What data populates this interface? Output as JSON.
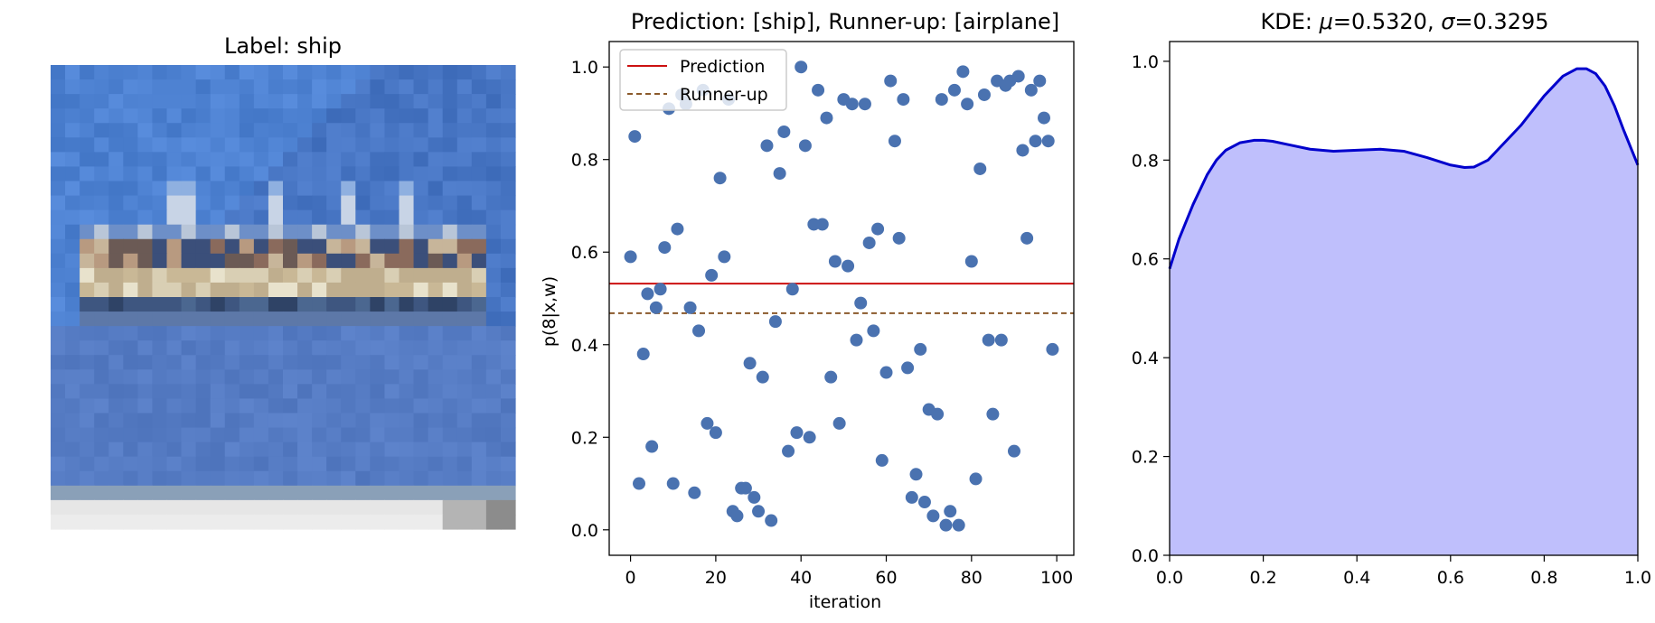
{
  "chart_data": [
    {
      "type": "image",
      "title": "Label: ship",
      "image_description_colors": {
        "sea": "#4a78c8",
        "sea_light": "#6f9de4",
        "hull": "#c9b896",
        "bottom_strip": "#8aa0b8"
      }
    },
    {
      "type": "scatter",
      "title": "Prediction: [ship], Runner-up: [airplane]",
      "title_color": "#4e7a1e",
      "xlabel": "iteration",
      "ylabel": "p(8|x,w)",
      "xlim": [
        -5,
        104
      ],
      "ylim": [
        -0.055,
        1.055
      ],
      "xticks": [
        0,
        20,
        40,
        60,
        80,
        100
      ],
      "yticks": [
        "0.0",
        "0.2",
        "0.4",
        "0.6",
        "0.8",
        "1.0"
      ],
      "point_color": "#4a72b0",
      "prediction_line": {
        "label": "Prediction",
        "value": 0.532,
        "color": "#cc1111",
        "style": "solid"
      },
      "runnerup_line": {
        "label": "Runner-up",
        "value": 0.468,
        "color": "#8b5a2b",
        "style": "dashed"
      },
      "legend": "top-left",
      "x": [
        0,
        1,
        2,
        3,
        4,
        5,
        6,
        7,
        8,
        9,
        10,
        11,
        12,
        13,
        14,
        15,
        16,
        17,
        18,
        19,
        20,
        21,
        22,
        23,
        24,
        25,
        26,
        27,
        28,
        29,
        30,
        31,
        32,
        33,
        34,
        35,
        36,
        37,
        38,
        39,
        40,
        41,
        42,
        43,
        44,
        45,
        46,
        47,
        48,
        49,
        50,
        51,
        52,
        53,
        54,
        55,
        56,
        57,
        58,
        59,
        60,
        61,
        62,
        63,
        64,
        65,
        66,
        67,
        68,
        69,
        70,
        71,
        72,
        73,
        74,
        75,
        76,
        77,
        78,
        79,
        80,
        81,
        82,
        83,
        84,
        85,
        86,
        87,
        88,
        89,
        90,
        91,
        92,
        93,
        94,
        95,
        96,
        97,
        98,
        99
      ],
      "y": [
        0.59,
        0.85,
        0.1,
        0.38,
        0.51,
        0.18,
        0.48,
        0.52,
        0.61,
        0.91,
        0.1,
        0.65,
        0.94,
        0.92,
        0.48,
        0.08,
        0.43,
        0.95,
        0.23,
        0.55,
        0.21,
        0.76,
        0.59,
        0.93,
        0.04,
        0.03,
        0.09,
        0.09,
        0.36,
        0.07,
        0.04,
        0.33,
        0.83,
        0.02,
        0.45,
        0.77,
        0.86,
        0.17,
        0.52,
        0.21,
        1.0,
        0.83,
        0.2,
        0.66,
        0.95,
        0.66,
        0.89,
        0.33,
        0.58,
        0.23,
        0.93,
        0.57,
        0.92,
        0.41,
        0.49,
        0.92,
        0.62,
        0.43,
        0.65,
        0.15,
        0.34,
        0.97,
        0.84,
        0.63,
        0.93,
        0.35,
        0.07,
        0.12,
        0.39,
        0.06,
        0.26,
        0.03,
        0.25,
        0.93,
        0.01,
        0.04,
        0.95,
        0.01,
        0.99,
        0.92,
        0.58,
        0.11,
        0.78,
        0.94,
        0.41,
        0.25,
        0.97,
        0.41,
        0.96,
        0.97,
        0.17,
        0.98,
        0.82,
        0.63,
        0.95,
        0.84,
        0.97,
        0.89,
        0.84,
        0.39
      ]
    },
    {
      "type": "area",
      "title": "KDE: μ=0.5320, σ=0.3295",
      "title_parts": {
        "prefix": "KDE: ",
        "mu": "μ",
        "mu_val": "=0.5320, ",
        "sigma": "σ",
        "sigma_val": "=0.3295"
      },
      "xlim": [
        0.0,
        1.0
      ],
      "ylim": [
        0.0,
        1.04
      ],
      "xticks": [
        "0.0",
        "0.2",
        "0.4",
        "0.6",
        "0.8",
        "1.0"
      ],
      "yticks": [
        "0.0",
        "0.2",
        "0.4",
        "0.6",
        "0.8",
        "1.0"
      ],
      "line_color": "#0000cc",
      "fill_color": "#bfbffc",
      "x": [
        0.0,
        0.02,
        0.05,
        0.08,
        0.1,
        0.12,
        0.15,
        0.18,
        0.2,
        0.22,
        0.25,
        0.3,
        0.35,
        0.4,
        0.45,
        0.5,
        0.55,
        0.6,
        0.63,
        0.65,
        0.68,
        0.7,
        0.75,
        0.8,
        0.84,
        0.87,
        0.89,
        0.91,
        0.93,
        0.95,
        0.97,
        1.0
      ],
      "y": [
        0.58,
        0.64,
        0.71,
        0.77,
        0.8,
        0.82,
        0.835,
        0.84,
        0.84,
        0.838,
        0.832,
        0.822,
        0.818,
        0.82,
        0.822,
        0.818,
        0.805,
        0.79,
        0.785,
        0.786,
        0.8,
        0.82,
        0.87,
        0.93,
        0.97,
        0.985,
        0.985,
        0.975,
        0.95,
        0.91,
        0.86,
        0.79
      ]
    }
  ]
}
